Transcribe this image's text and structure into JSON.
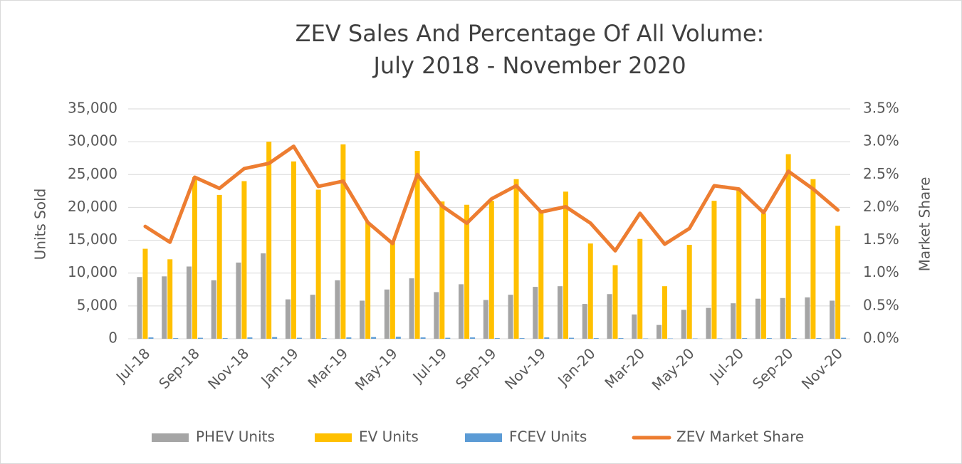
{
  "chart_data": {
    "type": "bar-line",
    "title": [
      "ZEV Sales And Percentage Of All Volume:",
      "July 2018 - November 2020"
    ],
    "y_label": "Units Sold",
    "y2_label": "Market Share",
    "categories": [
      "Jul-18",
      null,
      "Sep-18",
      null,
      "Nov-18",
      null,
      "Jan-19",
      null,
      "Mar-19",
      null,
      "May-19",
      null,
      "Jul-19",
      null,
      "Sep-19",
      null,
      "Nov-19",
      null,
      "Jan-20",
      null,
      "Mar-20",
      null,
      "May-20",
      null,
      "Jul-20",
      null,
      "Sep-20",
      null,
      "Nov-20"
    ],
    "series": [
      {
        "name": "PHEV Units",
        "type": "bar",
        "color": "#a5a5a5",
        "values": [
          9400,
          9500,
          11000,
          8900,
          11600,
          13000,
          6000,
          6700,
          8900,
          5800,
          7500,
          9200,
          7100,
          8300,
          5900,
          6700,
          7900,
          8000,
          5300,
          6800,
          3700,
          2100,
          4400,
          4700,
          5400,
          6100,
          6200,
          6300,
          5800
        ]
      },
      {
        "name": "EV Units",
        "type": "bar",
        "color": "#ffc000",
        "values": [
          13700,
          12100,
          24600,
          21900,
          24000,
          30000,
          27000,
          22700,
          29600,
          17800,
          14700,
          28600,
          20900,
          20400,
          21000,
          24300,
          19300,
          22400,
          14500,
          11200,
          15200,
          8000,
          14300,
          21000,
          22800,
          19100,
          28100,
          24300,
          17200
        ]
      },
      {
        "name": "FCEV Units",
        "type": "bar",
        "color": "#5b9bd5",
        "values": [
          200,
          100,
          150,
          100,
          200,
          250,
          150,
          100,
          200,
          250,
          300,
          200,
          150,
          200,
          100,
          100,
          200,
          150,
          100,
          100,
          50,
          50,
          50,
          50,
          100,
          100,
          100,
          100,
          150
        ]
      },
      {
        "name": "ZEV Market Share",
        "type": "line",
        "axis": "y2",
        "color": "#ed7d31",
        "values": [
          1.71,
          1.47,
          2.46,
          2.29,
          2.59,
          2.67,
          2.93,
          2.32,
          2.4,
          1.77,
          1.45,
          2.5,
          2.02,
          1.76,
          2.13,
          2.33,
          1.93,
          2.01,
          1.76,
          1.34,
          1.91,
          1.44,
          1.68,
          2.33,
          2.28,
          1.92,
          2.55,
          2.28,
          1.96
        ]
      }
    ],
    "ylim": [
      0,
      35000
    ],
    "yticks": [
      0,
      {
        "value": 5000,
        "label": "5,000"
      },
      {
        "value": 10000,
        "label": "10,000"
      },
      {
        "value": 15000,
        "label": "15,000"
      },
      {
        "value": 20000,
        "label": "20,000"
      },
      {
        "value": 25000,
        "label": "25,000"
      },
      {
        "value": 30000,
        "label": "30,000"
      },
      {
        "value": 35000,
        "label": "35,000"
      }
    ],
    "y2lim": [
      0,
      3.5
    ],
    "y2ticks": [
      {
        "value": 0,
        "label": "0.0%"
      },
      {
        "value": 0.5,
        "label": "0.5%"
      },
      {
        "value": 1,
        "label": "1.0%"
      },
      {
        "value": 1.5,
        "label": "1.5%"
      },
      {
        "value": 2,
        "label": "2.0%"
      },
      {
        "value": 2.5,
        "label": "2.5%"
      },
      {
        "value": 3,
        "label": "3.0%"
      },
      {
        "value": 3.5,
        "label": "3.5%"
      }
    ],
    "grid": true,
    "legend": "bottom"
  }
}
